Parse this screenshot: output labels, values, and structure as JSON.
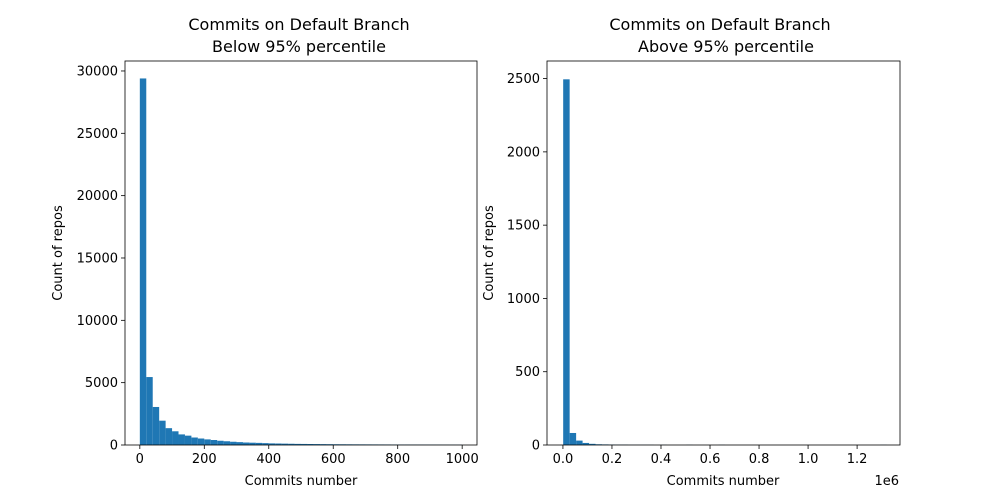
{
  "chart_data": [
    {
      "type": "bar",
      "title_lines": [
        "Commits on Default Branch",
        "Below 95% percentile"
      ],
      "xlabel": "Commits number",
      "ylabel": "Count of repos",
      "xlim": [
        -46,
        1046
      ],
      "ylim": [
        0,
        30800
      ],
      "xticks": [
        0,
        200,
        400,
        600,
        800,
        1000
      ],
      "yticks": [
        0,
        5000,
        10000,
        15000,
        20000,
        25000,
        30000
      ],
      "x_offset_label": "",
      "bin_start": 0,
      "bin_width": 20,
      "values": [
        29400,
        5450,
        3050,
        1950,
        1350,
        1100,
        850,
        750,
        600,
        520,
        450,
        400,
        340,
        300,
        260,
        230,
        200,
        185,
        170,
        150,
        130,
        120,
        110,
        100,
        90,
        85,
        80,
        75,
        70,
        65,
        60,
        58,
        55,
        52,
        50,
        48,
        46,
        44,
        42,
        40,
        38,
        36,
        34,
        32,
        30,
        28,
        26,
        24,
        22,
        20
      ],
      "color": "#1f77b4"
    },
    {
      "type": "bar",
      "title_lines": [
        "Commits on Default Branch",
        "Above 95% percentile"
      ],
      "xlabel": "Commits number",
      "ylabel": "Count of repos",
      "xlim": [
        -65000,
        1375000
      ],
      "ylim": [
        0,
        2620
      ],
      "xticks": [
        0,
        200000,
        400000,
        600000,
        800000,
        1000000,
        1200000
      ],
      "xtick_labels": [
        "0.0",
        "0.2",
        "0.4",
        "0.6",
        "0.8",
        "1.0",
        "1.2"
      ],
      "yticks": [
        0,
        500,
        1000,
        1500,
        2000,
        2500
      ],
      "x_offset_label": "1e6",
      "bin_start": 1000,
      "bin_width": 26400,
      "values": [
        2495,
        82,
        30,
        14,
        8,
        5,
        4,
        3,
        2,
        2,
        1,
        1,
        1,
        1,
        0,
        1,
        0,
        0,
        0,
        1,
        0,
        0,
        0,
        0,
        1,
        0,
        0,
        0,
        0,
        0,
        0,
        0,
        0,
        0,
        0,
        0,
        0,
        0,
        0,
        0,
        0,
        0,
        0,
        0,
        0,
        0,
        0,
        0,
        0,
        1
      ],
      "color": "#1f77b4"
    }
  ]
}
